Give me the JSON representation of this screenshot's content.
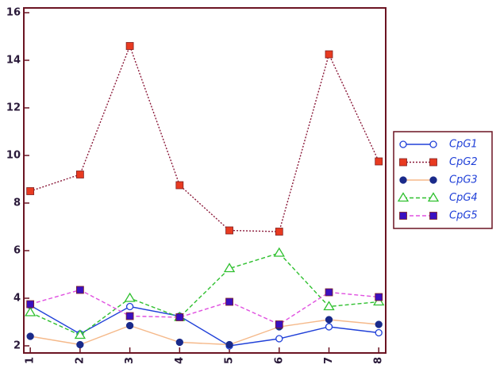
{
  "chart_data": {
    "type": "line",
    "x": [
      1,
      2,
      3,
      4,
      5,
      6,
      7,
      8
    ],
    "xlim": [
      0.87,
      8.14
    ],
    "xticks": [
      1,
      2,
      3,
      4,
      5,
      6,
      7,
      8
    ],
    "ylim": [
      1.7,
      16.2
    ],
    "yticks": [
      2,
      4,
      6,
      8,
      10,
      12,
      14,
      16
    ],
    "frame_color": "#6b1422",
    "series": [
      {
        "name": "CpG1",
        "color": "#2040d8",
        "dash": "none",
        "marker": "circle-open",
        "marker_color": "#2040d8",
        "values": [
          3.7,
          2.5,
          3.65,
          3.25,
          2.0,
          2.3,
          2.8,
          2.55
        ]
      },
      {
        "name": "CpG2",
        "color": "#8b1a3a",
        "dash": "2,2",
        "marker": "square",
        "marker_color": "#e83a20",
        "values": [
          8.5,
          9.2,
          14.6,
          8.75,
          6.85,
          6.8,
          14.25,
          9.75
        ]
      },
      {
        "name": "CpG3",
        "color": "#f5b98a",
        "dash": "none",
        "marker": "circle",
        "marker_color": "#1a2a8a",
        "values": [
          2.4,
          2.05,
          2.85,
          2.15,
          2.05,
          2.8,
          3.1,
          2.9
        ]
      },
      {
        "name": "CpG4",
        "color": "#2fc02f",
        "dash": "5,3",
        "marker": "triangle-open",
        "marker_color": "#2fc02f",
        "values": [
          3.4,
          2.45,
          4.0,
          3.2,
          5.25,
          5.9,
          3.65,
          3.85
        ]
      },
      {
        "name": "CpG5",
        "color": "#e050e0",
        "dash": "5,3",
        "marker": "square",
        "marker_color": "#3a10c0",
        "values": [
          3.75,
          4.35,
          3.25,
          3.2,
          3.85,
          2.9,
          4.25,
          4.05
        ]
      }
    ]
  }
}
